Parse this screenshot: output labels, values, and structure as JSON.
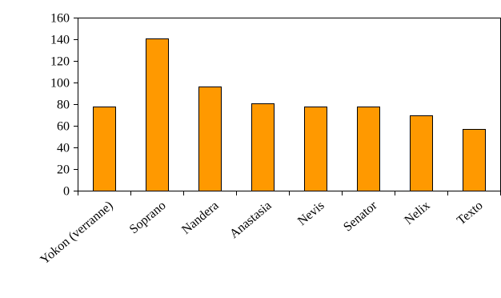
{
  "chart_data": {
    "type": "bar",
    "title": "",
    "xlabel": "",
    "ylabel": "",
    "categories": [
      "Yokon (verranne)",
      "Soprano",
      "Nandera",
      "Anastasia",
      "Nevis",
      "Senator",
      "Nelix",
      "Texto"
    ],
    "values": [
      78,
      141,
      96,
      81,
      78,
      78,
      70,
      57
    ],
    "ylim": [
      0,
      160
    ],
    "yticks": [
      0,
      20,
      40,
      60,
      80,
      100,
      120,
      140,
      160
    ],
    "grid": false,
    "legend": "none",
    "bar_color": "#ff9900"
  }
}
